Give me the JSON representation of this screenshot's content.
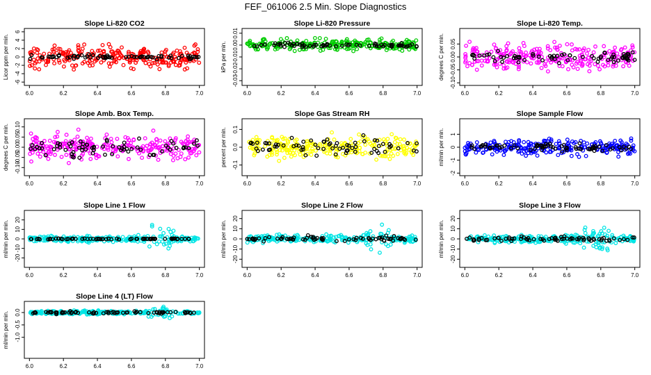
{
  "figure": {
    "title": "FEF_061006  2.5 Min. Slope Diagnostics"
  },
  "chart_data": [
    {
      "type": "scatter",
      "title": "Slope Li-820 CO2",
      "ylabel": "Licor ppm per min.",
      "xlim": [
        5.97,
        7.03
      ],
      "ylim": [
        -6.8,
        6.8
      ],
      "xticks": [
        "6.0",
        "6.2",
        "6.4",
        "6.6",
        "6.8",
        "7.0"
      ],
      "yticks": [
        "-6",
        "-4",
        "-2",
        "0",
        "2",
        "4",
        "6"
      ],
      "ytick_values": [
        -6,
        -4,
        -2,
        0,
        2,
        4,
        6
      ],
      "series": [
        {
          "color": "#ff0000",
          "spread": 2.2
        },
        {
          "color": "#000000",
          "spread": 0.4
        }
      ]
    },
    {
      "type": "scatter",
      "title": "Slope Li-820 Pressure",
      "ylabel": "kPa per min.",
      "xlim": [
        5.97,
        7.03
      ],
      "ylim": [
        -0.034,
        0.014
      ],
      "xticks": [
        "6.0",
        "6.2",
        "6.4",
        "6.6",
        "6.8",
        "7.0"
      ],
      "yticks": [
        "-0.03",
        "-0.02",
        "-0.01",
        "0.00",
        "0.01"
      ],
      "ytick_values": [
        -0.03,
        -0.02,
        -0.01,
        0,
        0.01
      ],
      "series": [
        {
          "color": "#00cc00",
          "spread": 0.004
        },
        {
          "color": "#000000",
          "spread": 0.0015
        }
      ]
    },
    {
      "type": "scatter",
      "title": "Slope Li-820 Temp.",
      "ylabel": "degrees C per min.",
      "xlim": [
        5.97,
        7.03
      ],
      "ylim": [
        -0.11,
        0.11
      ],
      "xticks": [
        "6.0",
        "6.2",
        "6.4",
        "6.6",
        "6.8",
        "7.0"
      ],
      "yticks": [
        "-0.10",
        "-0.05",
        "0.00",
        "0.05"
      ],
      "ytick_values": [
        -0.1,
        -0.05,
        0,
        0.05
      ],
      "series": [
        {
          "color": "#ff00ff",
          "spread": 0.04
        },
        {
          "color": "#000000",
          "spread": 0.02
        }
      ]
    },
    {
      "type": "scatter",
      "title": "Slope Amb. Box Temp.",
      "ylabel": "degrees C per min.",
      "xlim": [
        5.97,
        7.03
      ],
      "ylim": [
        -0.14,
        0.14
      ],
      "xticks": [
        "6.0",
        "6.2",
        "6.4",
        "6.6",
        "6.8",
        "7.0"
      ],
      "yticks": [
        "-0.10",
        "-0.05",
        "0.00",
        "0.05",
        "0.10"
      ],
      "ytick_values": [
        -0.1,
        -0.05,
        0,
        0.05,
        0.1
      ],
      "series": [
        {
          "color": "#ff00ff",
          "spread": 0.05
        },
        {
          "color": "#000000",
          "spread": 0.035
        }
      ]
    },
    {
      "type": "scatter",
      "title": "Slope Gas Stream RH",
      "ylabel": "percent per min.",
      "xlim": [
        5.97,
        7.03
      ],
      "ylim": [
        -0.16,
        0.16
      ],
      "xticks": [
        "6.0",
        "6.2",
        "6.4",
        "6.6",
        "6.8",
        "7.0"
      ],
      "yticks": [
        "-0.1",
        "0.0",
        "0.1"
      ],
      "ytick_values": [
        -0.1,
        0,
        0.1
      ],
      "series": [
        {
          "color": "#ffff00",
          "spread": 0.05
        },
        {
          "color": "#000000",
          "spread": 0.04
        }
      ]
    },
    {
      "type": "scatter",
      "title": "Slope Sample Flow",
      "ylabel": "ml/min per min.",
      "xlim": [
        5.97,
        7.03
      ],
      "ylim": [
        -2.2,
        2.2
      ],
      "xticks": [
        "6.0",
        "6.2",
        "6.4",
        "6.6",
        "6.8",
        "7.0"
      ],
      "yticks": [
        "-2",
        "-1",
        "0",
        "1"
      ],
      "ytick_values": [
        -2,
        -1,
        0,
        1
      ],
      "series": [
        {
          "color": "#0000ff",
          "spread": 0.5
        },
        {
          "color": "#000000",
          "spread": 0.25
        }
      ]
    },
    {
      "type": "scatter",
      "title": "Slope Line 1 Flow",
      "ylabel": "ml/min per min.",
      "xlim": [
        5.97,
        7.03
      ],
      "ylim": [
        -30,
        30
      ],
      "xticks": [
        "6.0",
        "6.2",
        "6.4",
        "6.6",
        "6.8",
        "7.0"
      ],
      "yticks": [
        "-20",
        "-10",
        "0",
        "10",
        "20"
      ],
      "ytick_values": [
        -20,
        -10,
        0,
        10,
        20
      ],
      "series": [
        {
          "color": "#00e5e5",
          "spread": 2.5
        },
        {
          "color": "#000000",
          "spread": 0.5
        }
      ]
    },
    {
      "type": "scatter",
      "title": "Slope Line 2 Flow",
      "ylabel": "ml/min per min.",
      "xlim": [
        5.97,
        7.03
      ],
      "ylim": [
        -28,
        28
      ],
      "xticks": [
        "6.0",
        "6.2",
        "6.4",
        "6.6",
        "6.8",
        "7.0"
      ],
      "yticks": [
        "-20",
        "-10",
        "0",
        "10",
        "20"
      ],
      "ytick_values": [
        -20,
        -10,
        0,
        10,
        20
      ],
      "series": [
        {
          "color": "#00e5e5",
          "spread": 3
        },
        {
          "color": "#000000",
          "spread": 2
        }
      ]
    },
    {
      "type": "scatter",
      "title": "Slope Line 3 Flow",
      "ylabel": "ml/min per min.",
      "xlim": [
        5.97,
        7.03
      ],
      "ylim": [
        -28,
        28
      ],
      "xticks": [
        "6.0",
        "6.2",
        "6.4",
        "6.6",
        "6.8",
        "7.0"
      ],
      "yticks": [
        "-20",
        "-10",
        "0",
        "10",
        "20"
      ],
      "ytick_values": [
        -20,
        -10,
        0,
        10,
        20
      ],
      "series": [
        {
          "color": "#00e5e5",
          "spread": 3
        },
        {
          "color": "#000000",
          "spread": 2
        }
      ]
    },
    {
      "type": "scatter",
      "title": "Slope Line 4 (LT) Flow",
      "ylabel": "ml/min per min.",
      "xlim": [
        5.97,
        7.03
      ],
      "ylim": [
        -1.85,
        0.45
      ],
      "xticks": [
        "6.0",
        "6.2",
        "6.4",
        "6.6",
        "6.8",
        "7.0"
      ],
      "yticks": [
        "-1.0",
        "-0.5",
        "0.0"
      ],
      "ytick_values": [
        -1,
        -0.5,
        0
      ],
      "series": [
        {
          "color": "#00e5e5",
          "spread": 0.06
        },
        {
          "color": "#000000",
          "spread": 0.04
        }
      ]
    }
  ]
}
